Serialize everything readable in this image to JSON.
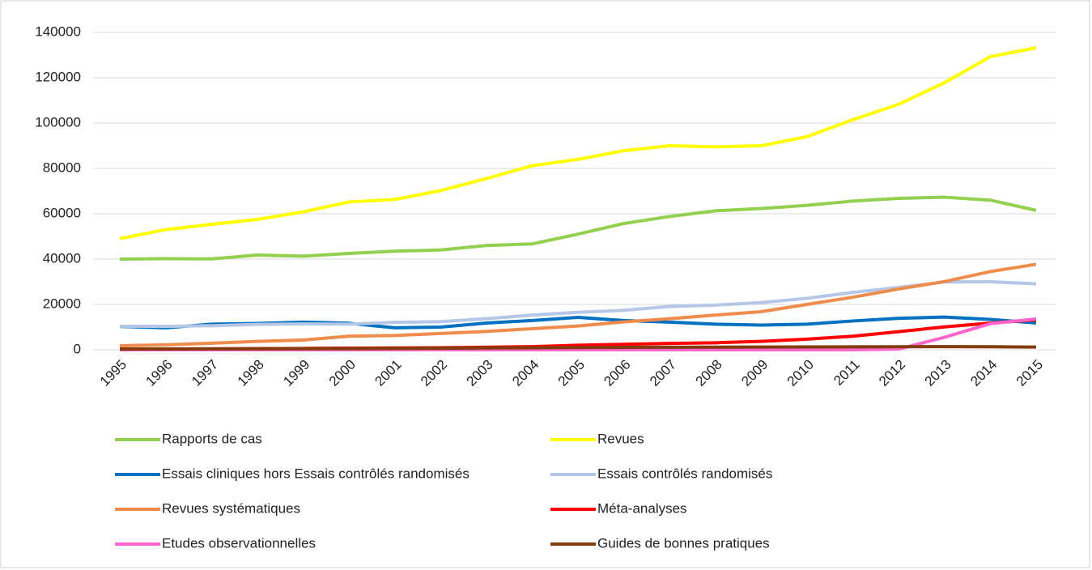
{
  "chart_data": {
    "type": "line",
    "categories": [
      "1995",
      "1996",
      "1997",
      "1998",
      "1999",
      "2000",
      "2001",
      "2002",
      "2003",
      "2004",
      "2005",
      "2006",
      "2007",
      "2008",
      "2009",
      "2010",
      "2011",
      "2012",
      "2013",
      "2014",
      "2015"
    ],
    "ylim": [
      0,
      140000
    ],
    "yticks": [
      0,
      20000,
      40000,
      60000,
      80000,
      100000,
      120000,
      140000
    ],
    "grid": true,
    "legend": "bottom",
    "series": [
      {
        "name": "Rapports de cas",
        "color": "#92d050",
        "values": [
          40000,
          40200,
          40100,
          41800,
          41300,
          42500,
          43500,
          44000,
          46000,
          46700,
          51000,
          55700,
          58800,
          61300,
          62300,
          63700,
          65600,
          66800,
          67300,
          66000,
          61500
        ]
      },
      {
        "name": "Revues",
        "color": "#ffff00",
        "values": [
          49000,
          53000,
          55300,
          57500,
          60800,
          65200,
          66300,
          70200,
          75500,
          81200,
          84000,
          87800,
          90000,
          89500,
          90000,
          94000,
          101500,
          108300,
          117800,
          129300,
          133200
        ]
      },
      {
        "name": "Essais cliniques hors Essais contrôlés randomisés",
        "color": "#0070c0",
        "values": [
          10300,
          9700,
          11300,
          11600,
          12200,
          11700,
          9700,
          10000,
          11800,
          12900,
          14300,
          12900,
          12200,
          11300,
          10900,
          11300,
          12700,
          13900,
          14400,
          13400,
          11800
        ]
      },
      {
        "name": "Essais contrôlés randomisés",
        "color": "#b4c7e7",
        "values": [
          10400,
          10300,
          10600,
          11200,
          11400,
          11300,
          12100,
          12400,
          13700,
          15300,
          16500,
          17400,
          19100,
          19700,
          20800,
          22700,
          25300,
          27500,
          29900,
          30000,
          29100
        ]
      },
      {
        "name": "Revues systématiques",
        "color": "#f08c4b",
        "values": [
          1800,
          2200,
          2900,
          3700,
          4300,
          6000,
          6300,
          7200,
          8100,
          9300,
          10500,
          12300,
          13700,
          15300,
          16800,
          20000,
          23200,
          26800,
          30100,
          34500,
          37700
        ]
      },
      {
        "name": "Méta-analyses",
        "color": "#ff0000",
        "values": [
          300,
          350,
          400,
          500,
          600,
          700,
          800,
          900,
          1100,
          1400,
          2000,
          2400,
          2800,
          3100,
          3700,
          4700,
          6000,
          8000,
          10100,
          11800,
          13200
        ]
      },
      {
        "name": "Etudes observationnelles",
        "color": "#ff66cc",
        "values": [
          0,
          0,
          0,
          0,
          0,
          0,
          0,
          0,
          0,
          0,
          0,
          0,
          0,
          0,
          0,
          0,
          0,
          300,
          5500,
          11500,
          13600
        ]
      },
      {
        "name": "Guides de bonnes pratiques",
        "color": "#843c0c",
        "values": [
          300,
          350,
          400,
          450,
          500,
          550,
          600,
          650,
          800,
          900,
          1000,
          1050,
          1100,
          1150,
          1200,
          1250,
          1300,
          1350,
          1400,
          1350,
          1200
        ]
      }
    ]
  }
}
